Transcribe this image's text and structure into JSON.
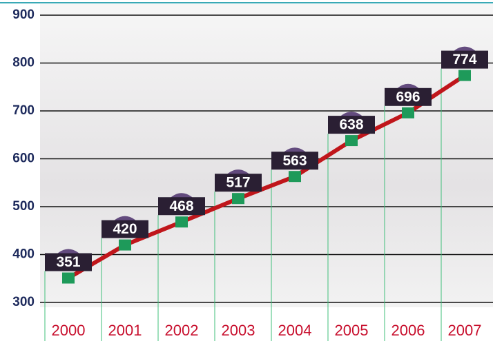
{
  "chart_data": {
    "type": "line",
    "categories": [
      "2000",
      "2001",
      "2002",
      "2003",
      "2004",
      "2005",
      "2006",
      "2007"
    ],
    "values": [
      351,
      420,
      468,
      517,
      563,
      638,
      696,
      774
    ],
    "color": "#c0161b",
    "marker_color": "#1e9a5a",
    "ylim": [
      300,
      900
    ],
    "yticks": [
      300,
      400,
      500,
      600,
      700,
      800,
      900
    ],
    "grid": true
  }
}
